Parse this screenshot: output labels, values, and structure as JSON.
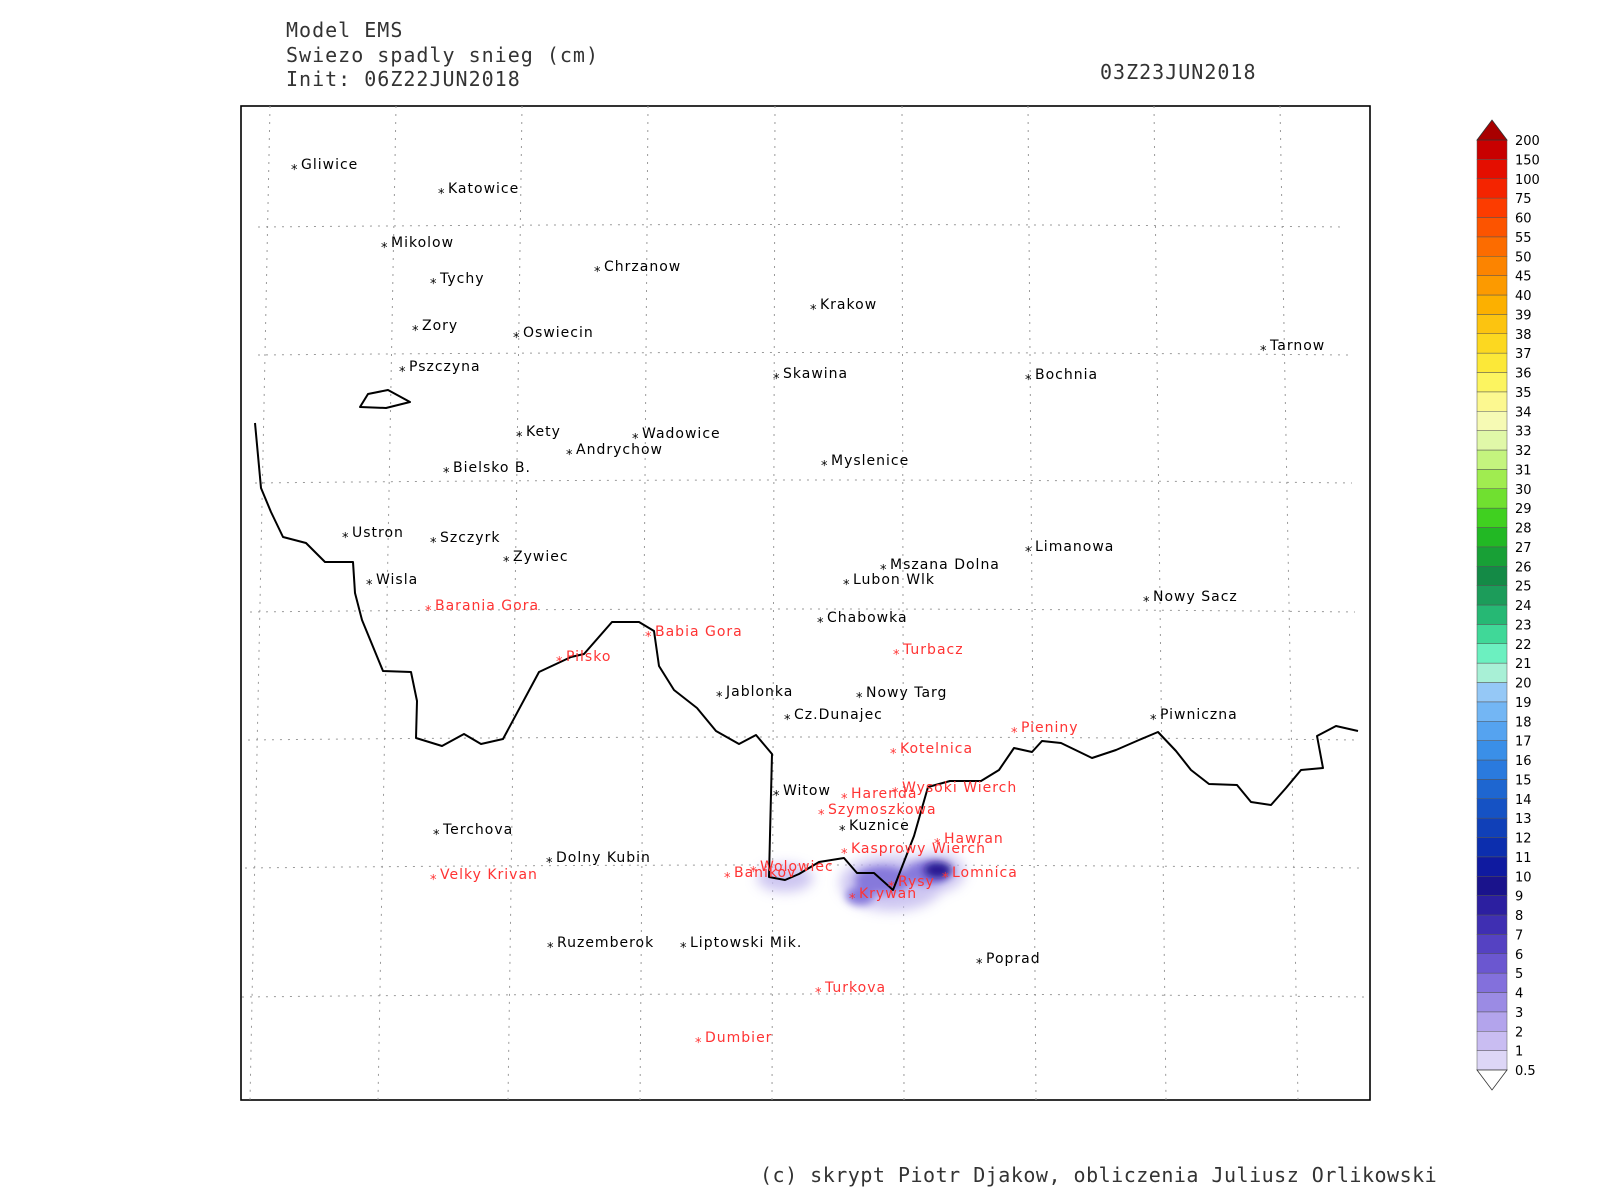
{
  "header": {
    "model": "Model EMS",
    "variable": "Swiezo spadly snieg (cm)",
    "init": "Init: 06Z22JUN2018",
    "valid": "03Z23JUN2018"
  },
  "footer": "(c) skrypt Piotr Djakow, obliczenia Juliusz Orlikowski",
  "colors": {
    "city": "#000000",
    "peak": "#ff3333",
    "border": "#000000",
    "snow_light": "#c8c0f0",
    "snow_mid": "#7a6cd8",
    "snow_dark": "#1a0f8a"
  },
  "legend": {
    "levels": [
      "0.5",
      "1",
      "2",
      "3",
      "4",
      "5",
      "6",
      "7",
      "8",
      "9",
      "10",
      "11",
      "12",
      "13",
      "14",
      "15",
      "16",
      "17",
      "18",
      "19",
      "20",
      "21",
      "22",
      "23",
      "24",
      "25",
      "26",
      "27",
      "28",
      "29",
      "30",
      "31",
      "32",
      "33",
      "34",
      "35",
      "36",
      "37",
      "38",
      "39",
      "40",
      "45",
      "50",
      "55",
      "60",
      "75",
      "100",
      "150",
      "200"
    ],
    "colors": [
      "#ddd6f6",
      "#c9bdf2",
      "#b3a4ec",
      "#9b8be4",
      "#8370dc",
      "#6b57d0",
      "#5542c2",
      "#3f2fb2",
      "#2c1fa0",
      "#1a138c",
      "#0f1aa0",
      "#0c2eae",
      "#1040b8",
      "#1552c4",
      "#1e66d0",
      "#2a7ade",
      "#3a8fe8",
      "#55a3f0",
      "#73b6f4",
      "#95c8f6",
      "#a8f0d6",
      "#6cf0c0",
      "#40d898",
      "#26b874",
      "#1c9c5a",
      "#148a46",
      "#18a036",
      "#22b824",
      "#40d020",
      "#70e030",
      "#a0ec50",
      "#c4f47e",
      "#e0f8a8",
      "#f6fab4",
      "#fcf890",
      "#fcf460",
      "#fce838",
      "#fcd820",
      "#fcc410",
      "#fcb000",
      "#fc9a00",
      "#fc8400",
      "#fc6c00",
      "#fc5400",
      "#fc3c00",
      "#f42400",
      "#e40e00",
      "#c80000",
      "#a80000"
    ]
  },
  "places": [
    {
      "name": "Gliwice",
      "type": "city"
    },
    {
      "name": "Katowice",
      "type": "city"
    },
    {
      "name": "Mikolow",
      "type": "city"
    },
    {
      "name": "Tychy",
      "type": "city"
    },
    {
      "name": "Chrzanow",
      "type": "city"
    },
    {
      "name": "Krakow",
      "type": "city"
    },
    {
      "name": "Zory",
      "type": "city"
    },
    {
      "name": "Oswiecin",
      "type": "city"
    },
    {
      "name": "Tarnow",
      "type": "city"
    },
    {
      "name": "Pszczyna",
      "type": "city"
    },
    {
      "name": "Skawina",
      "type": "city"
    },
    {
      "name": "Bochnia",
      "type": "city"
    },
    {
      "name": "Kety",
      "type": "city"
    },
    {
      "name": "Wadowice",
      "type": "city"
    },
    {
      "name": "Andrychow",
      "type": "city"
    },
    {
      "name": "Myslenice",
      "type": "city"
    },
    {
      "name": "Bielsko B.",
      "type": "city"
    },
    {
      "name": "Ustron",
      "type": "city"
    },
    {
      "name": "Szczyrk",
      "type": "city"
    },
    {
      "name": "Zywiec",
      "type": "city"
    },
    {
      "name": "Limanowa",
      "type": "city"
    },
    {
      "name": "Mszana Dolna",
      "type": "city"
    },
    {
      "name": "Wisla",
      "type": "city"
    },
    {
      "name": "Lubon Wlk",
      "type": "city"
    },
    {
      "name": "Nowy Sacz",
      "type": "city"
    },
    {
      "name": "Barania Gora",
      "type": "peak"
    },
    {
      "name": "Chabowka",
      "type": "city"
    },
    {
      "name": "Babia Gora",
      "type": "peak"
    },
    {
      "name": "Turbacz",
      "type": "peak"
    },
    {
      "name": "Pilsko",
      "type": "peak"
    },
    {
      "name": "Jablonka",
      "type": "city"
    },
    {
      "name": "Nowy Targ",
      "type": "city"
    },
    {
      "name": "Cz.Dunajec",
      "type": "city"
    },
    {
      "name": "Piwniczna",
      "type": "city"
    },
    {
      "name": "Pieniny",
      "type": "peak"
    },
    {
      "name": "Kotelnica",
      "type": "peak"
    },
    {
      "name": "Witow",
      "type": "city"
    },
    {
      "name": "Harenda",
      "type": "peak"
    },
    {
      "name": "Wysoki Wierch",
      "type": "peak"
    },
    {
      "name": "Szymoszkowa",
      "type": "peak"
    },
    {
      "name": "Kuznice",
      "type": "city"
    },
    {
      "name": "Terchova",
      "type": "city"
    },
    {
      "name": "Hawran",
      "type": "peak"
    },
    {
      "name": "Kasprowy Wierch",
      "type": "peak"
    },
    {
      "name": "Dolny Kubin",
      "type": "city"
    },
    {
      "name": "Wolowiec",
      "type": "peak"
    },
    {
      "name": "Banikov",
      "type": "peak"
    },
    {
      "name": "Lomnica",
      "type": "peak"
    },
    {
      "name": "Velky Krivan",
      "type": "peak"
    },
    {
      "name": "Rysy",
      "type": "peak"
    },
    {
      "name": "Krywan",
      "type": "peak"
    },
    {
      "name": "Ruzemberok",
      "type": "city"
    },
    {
      "name": "Liptowski Mik.",
      "type": "city"
    },
    {
      "name": "Poprad",
      "type": "city"
    },
    {
      "name": "Turkova",
      "type": "peak"
    },
    {
      "name": "Dumbier",
      "type": "peak"
    }
  ]
}
